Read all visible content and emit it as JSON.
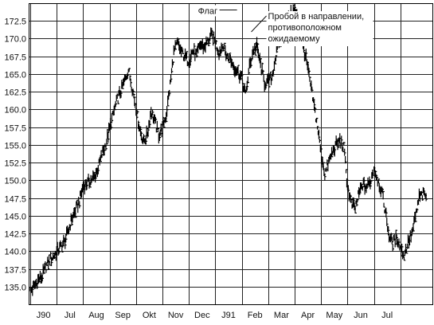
{
  "chart_data": {
    "type": "bar",
    "title": "",
    "xlabel": "",
    "ylabel": "",
    "ylim": [
      132.5,
      175.0
    ],
    "y_ticks": [
      "135.0",
      "137.5",
      "140.0",
      "142.5",
      "145.0",
      "147.5",
      "150.0",
      "152.5",
      "155.0",
      "157.5",
      "160.0",
      "162.5",
      "165.0",
      "167.5",
      "170.0",
      "172.5"
    ],
    "x_ticks": [
      "J90",
      "Jul",
      "Aug",
      "Sep",
      "Okt",
      "Nov",
      "Dec",
      "J91",
      "Feb",
      "Mar",
      "Apr",
      "May",
      "Jun",
      "Jul"
    ],
    "grid": true,
    "annotations": [
      {
        "text": "Флаг",
        "x_month": 8.0,
        "y": 173.6
      },
      {
        "text": [
          "Пробой в направлении,",
          "противоположном",
          "ожидаемому"
        ],
        "x_month": 8.45,
        "y": 170.5
      }
    ],
    "series": [
      {
        "points": [
          [
            0.0,
            134.3
          ],
          [
            0.14,
            135.0
          ],
          [
            0.29,
            135.9
          ],
          [
            0.43,
            136.3
          ],
          [
            0.57,
            137.6
          ],
          [
            0.71,
            138.6
          ],
          [
            0.86,
            139.2
          ],
          [
            1.0,
            139.9
          ],
          [
            1.14,
            140.6
          ],
          [
            1.29,
            141.3
          ],
          [
            1.43,
            142.8
          ],
          [
            1.57,
            144.6
          ],
          [
            1.71,
            145.7
          ],
          [
            1.86,
            147.1
          ],
          [
            2.0,
            149.2
          ],
          [
            2.14,
            149.6
          ],
          [
            2.29,
            150.0
          ],
          [
            2.43,
            150.5
          ],
          [
            2.57,
            151.8
          ],
          [
            2.71,
            153.6
          ],
          [
            2.86,
            155.2
          ],
          [
            3.0,
            157.3
          ],
          [
            3.14,
            159.4
          ],
          [
            3.29,
            161.4
          ],
          [
            3.43,
            162.6
          ],
          [
            3.57,
            164.1
          ],
          [
            3.71,
            165.6
          ],
          [
            3.86,
            163.0
          ],
          [
            4.0,
            160.2
          ],
          [
            4.14,
            157.2
          ],
          [
            4.29,
            155.4
          ],
          [
            4.43,
            156.6
          ],
          [
            4.57,
            159.8
          ],
          [
            4.71,
            158.3
          ],
          [
            4.86,
            156.4
          ],
          [
            5.0,
            157.5
          ],
          [
            5.14,
            159.2
          ],
          [
            5.29,
            163.5
          ],
          [
            5.43,
            168.0
          ],
          [
            5.57,
            169.4
          ],
          [
            5.71,
            168.1
          ],
          [
            5.86,
            167.4
          ],
          [
            6.0,
            166.8
          ],
          [
            6.14,
            168.3
          ],
          [
            6.29,
            167.6
          ],
          [
            6.43,
            169.2
          ],
          [
            6.57,
            168.8
          ],
          [
            6.71,
            169.6
          ],
          [
            6.86,
            170.5
          ],
          [
            7.0,
            169.5
          ],
          [
            7.14,
            168.0
          ],
          [
            7.29,
            169.2
          ],
          [
            7.43,
            167.6
          ],
          [
            7.57,
            167.1
          ],
          [
            7.71,
            166.0
          ],
          [
            7.86,
            165.3
          ],
          [
            8.0,
            164.4
          ],
          [
            8.14,
            162.0
          ],
          [
            8.29,
            166.0
          ],
          [
            8.43,
            168.3
          ],
          [
            8.57,
            168.9
          ],
          [
            8.71,
            166.3
          ],
          [
            8.86,
            163.7
          ],
          [
            9.0,
            163.8
          ],
          [
            9.14,
            164.6
          ],
          [
            9.29,
            167.6
          ],
          [
            9.43,
            169.6
          ],
          [
            9.57,
            170.6
          ],
          [
            9.71,
            172.1
          ],
          [
            9.86,
            173.5
          ],
          [
            10.0,
            174.1
          ],
          [
            10.14,
            172.4
          ],
          [
            10.29,
            169.3
          ],
          [
            10.43,
            167.2
          ],
          [
            10.57,
            164.1
          ],
          [
            10.71,
            161.0
          ],
          [
            10.86,
            157.6
          ],
          [
            11.0,
            153.9
          ],
          [
            11.14,
            150.9
          ],
          [
            11.29,
            152.6
          ],
          [
            11.43,
            154.0
          ],
          [
            11.57,
            155.0
          ],
          [
            11.71,
            155.6
          ],
          [
            11.86,
            154.6
          ],
          [
            12.0,
            149.1
          ],
          [
            12.14,
            146.6
          ],
          [
            12.29,
            146.1
          ],
          [
            12.43,
            148.1
          ],
          [
            12.57,
            149.4
          ],
          [
            12.71,
            149.0
          ],
          [
            12.86,
            149.8
          ],
          [
            13.0,
            151.7
          ],
          [
            13.14,
            150.1
          ],
          [
            13.29,
            148.5
          ],
          [
            13.43,
            145.6
          ],
          [
            13.57,
            142.2
          ],
          [
            13.71,
            141.1
          ],
          [
            13.86,
            142.0
          ],
          [
            14.0,
            140.5
          ],
          [
            14.14,
            139.4
          ],
          [
            14.29,
            141.3
          ],
          [
            14.43,
            142.4
          ],
          [
            14.57,
            144.8
          ],
          [
            14.71,
            147.6
          ],
          [
            14.86,
            148.0
          ],
          [
            15.0,
            147.7
          ]
        ]
      }
    ]
  }
}
